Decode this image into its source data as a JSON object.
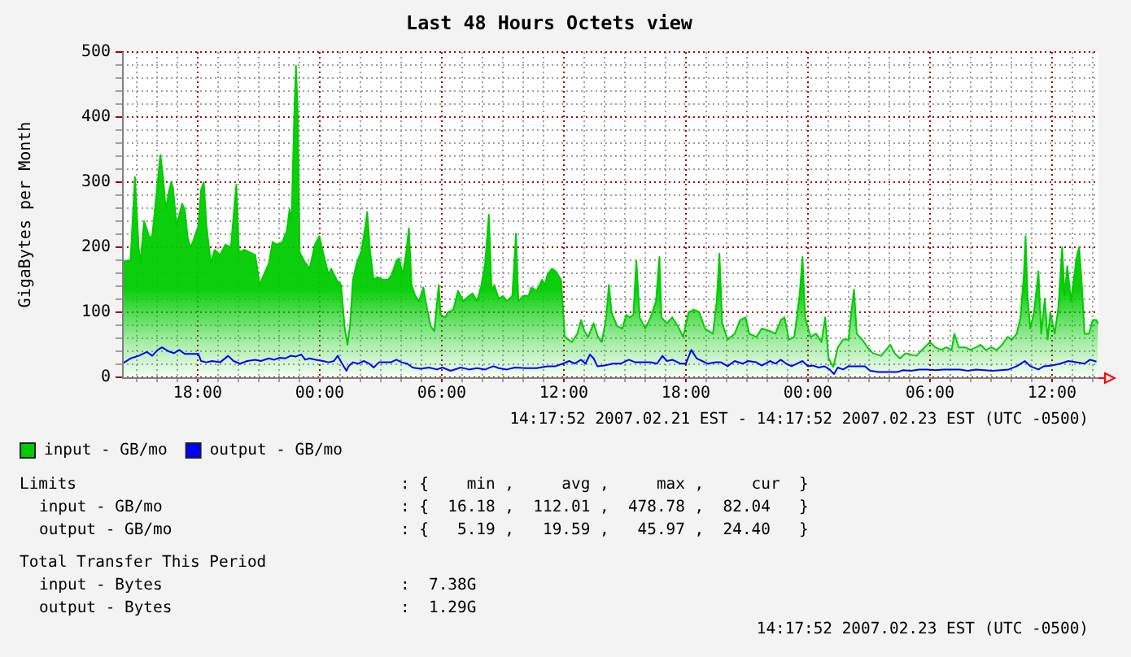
{
  "chart_data": {
    "type": "area",
    "title": "Last 48 Hours Octets view",
    "ylabel": "GigaBytes per Month",
    "xlim": [
      "2007-02-21T14:17",
      "2007-02-23T14:17"
    ],
    "xticks": [
      {
        "value": "2007-02-21T15:00",
        "label": null
      },
      {
        "value": "2007-02-21T16:00",
        "label": null
      },
      {
        "value": "2007-02-21T17:00",
        "label": null
      },
      {
        "value": "2007-02-21T18:00",
        "label": "18:00"
      },
      {
        "value": "2007-02-21T19:00",
        "label": null
      },
      {
        "value": "2007-02-21T20:00",
        "label": null
      },
      {
        "value": "2007-02-21T21:00",
        "label": null
      },
      {
        "value": "2007-02-21T22:00",
        "label": null
      },
      {
        "value": "2007-02-21T23:00",
        "label": null
      },
      {
        "value": "2007-02-22T00:00",
        "label": "00:00"
      },
      {
        "value": "2007-02-22T01:00",
        "label": null
      },
      {
        "value": "2007-02-22T02:00",
        "label": null
      },
      {
        "value": "2007-02-22T03:00",
        "label": null
      },
      {
        "value": "2007-02-22T04:00",
        "label": null
      },
      {
        "value": "2007-02-22T05:00",
        "label": null
      },
      {
        "value": "2007-02-22T06:00",
        "label": "06:00"
      },
      {
        "value": "2007-02-22T07:00",
        "label": null
      },
      {
        "value": "2007-02-22T08:00",
        "label": null
      },
      {
        "value": "2007-02-22T09:00",
        "label": null
      },
      {
        "value": "2007-02-22T10:00",
        "label": null
      },
      {
        "value": "2007-02-22T11:00",
        "label": null
      },
      {
        "value": "2007-02-22T12:00",
        "label": "12:00"
      },
      {
        "value": "2007-02-22T13:00",
        "label": null
      },
      {
        "value": "2007-02-22T14:00",
        "label": null
      },
      {
        "value": "2007-02-22T15:00",
        "label": null
      },
      {
        "value": "2007-02-22T16:00",
        "label": null
      },
      {
        "value": "2007-02-22T17:00",
        "label": null
      },
      {
        "value": "2007-02-22T18:00",
        "label": "18:00"
      },
      {
        "value": "2007-02-22T19:00",
        "label": null
      },
      {
        "value": "2007-02-22T20:00",
        "label": null
      },
      {
        "value": "2007-02-22T21:00",
        "label": null
      },
      {
        "value": "2007-02-22T22:00",
        "label": null
      },
      {
        "value": "2007-02-22T23:00",
        "label": null
      },
      {
        "value": "2007-02-23T00:00",
        "label": "00:00"
      },
      {
        "value": "2007-02-23T01:00",
        "label": null
      },
      {
        "value": "2007-02-23T02:00",
        "label": null
      },
      {
        "value": "2007-02-23T03:00",
        "label": null
      },
      {
        "value": "2007-02-23T04:00",
        "label": null
      },
      {
        "value": "2007-02-23T05:00",
        "label": null
      },
      {
        "value": "2007-02-23T06:00",
        "label": "06:00"
      },
      {
        "value": "2007-02-23T07:00",
        "label": null
      },
      {
        "value": "2007-02-23T08:00",
        "label": null
      },
      {
        "value": "2007-02-23T09:00",
        "label": null
      },
      {
        "value": "2007-02-23T10:00",
        "label": null
      },
      {
        "value": "2007-02-23T11:00",
        "label": null
      },
      {
        "value": "2007-02-23T12:00",
        "label": "12:00"
      },
      {
        "value": "2007-02-23T13:00",
        "label": null
      },
      {
        "value": "2007-02-23T14:00",
        "label": null
      }
    ],
    "ylim": [
      0,
      500
    ],
    "yticks": [
      0,
      {
        "value": 20,
        "label": null
      },
      {
        "value": 40,
        "label": null
      },
      {
        "value": 60,
        "label": null
      },
      {
        "value": 80,
        "label": null
      },
      100,
      {
        "value": 120,
        "label": null
      },
      {
        "value": 140,
        "label": null
      },
      {
        "value": 160,
        "label": null
      },
      {
        "value": 180,
        "label": null
      },
      200,
      {
        "value": 220,
        "label": null
      },
      {
        "value": 240,
        "label": null
      },
      {
        "value": 260,
        "label": null
      },
      {
        "value": 280,
        "label": null
      },
      300,
      {
        "value": 320,
        "label": null
      },
      {
        "value": 340,
        "label": null
      },
      {
        "value": 360,
        "label": null
      },
      {
        "value": 380,
        "label": null
      },
      400,
      {
        "value": 420,
        "label": null
      },
      {
        "value": 440,
        "label": null
      },
      {
        "value": 460,
        "label": null
      },
      {
        "value": 480,
        "label": null
      },
      500
    ],
    "grid": true,
    "legend": "bottom left",
    "marker": "none",
    "annotations": [
      "14:17:52 2007.02.21 EST - 14:17:52 2007.02.23 EST (UTC -0500)",
      "Limits",
      ": {    min ,     avg ,     max ,     cur  }",
      "input - GB/mo",
      ": {  16.18 ,  112.01 ,  478.78 ,  82.04   }",
      "output - GB/mo",
      ": {   5.19 ,   19.59 ,   45.97 ,  24.40   }",
      "Total Transfer This Period",
      "input - Bytes",
      ":  7.38G",
      "output - Bytes",
      ":  1.29G",
      "14:17:52 2007.02.23 EST (UTC -0500)"
    ],
    "series": [
      {
        "name": "input - GB/mo",
        "color": "#00cc00",
        "x": [
          "2007-02-21T14:18",
          "2007-02-21T14:42",
          "2007-02-21T14:55",
          "2007-02-21T15:06",
          "2007-02-21T15:11",
          "2007-02-21T15:22",
          "2007-02-21T15:38",
          "2007-02-21T15:46",
          "2007-02-21T16:02",
          "2007-02-21T16:10",
          "2007-02-21T16:18",
          "2007-02-21T16:26",
          "2007-02-21T16:34",
          "2007-02-21T16:42",
          "2007-02-21T16:47",
          "2007-02-21T16:58",
          "2007-02-21T17:14",
          "2007-02-21T17:22",
          "2007-02-21T17:30",
          "2007-02-21T17:38",
          "2007-02-21T17:46",
          "2007-02-21T18:02",
          "2007-02-21T18:10",
          "2007-02-21T18:18",
          "2007-02-21T18:26",
          "2007-02-21T18:39",
          "2007-02-21T18:50",
          "2007-02-21T19:06",
          "2007-02-21T19:22",
          "2007-02-21T19:38",
          "2007-02-21T19:54",
          "2007-02-21T20:02",
          "2007-02-21T20:18",
          "2007-02-21T20:34",
          "2007-02-21T20:50",
          "2007-02-21T21:03",
          "2007-02-21T21:09",
          "2007-02-21T21:30",
          "2007-02-21T21:41",
          "2007-02-21T21:54",
          "2007-02-21T22:10",
          "2007-02-21T22:23",
          "2007-02-21T22:31",
          "2007-02-21T22:37",
          "2007-02-21T22:45",
          "2007-02-21T22:50",
          "2007-02-21T22:55",
          "2007-02-21T23:01",
          "2007-02-21T23:14",
          "2007-02-21T23:30",
          "2007-02-21T23:46",
          "2007-02-21T23:59",
          "2007-02-22T00:10",
          "2007-02-22T00:26",
          "2007-02-22T00:34",
          "2007-02-22T00:50",
          "2007-02-22T01:03",
          "2007-02-22T01:14",
          "2007-02-22T01:22",
          "2007-02-22T01:30",
          "2007-02-22T01:38",
          "2007-02-22T01:51",
          "2007-02-22T02:02",
          "2007-02-22T02:15",
          "2007-02-22T02:20",
          "2007-02-22T02:29",
          "2007-02-22T02:39",
          "2007-02-22T02:50",
          "2007-02-22T03:06",
          "2007-02-22T03:22",
          "2007-02-22T03:33",
          "2007-02-22T03:46",
          "2007-02-22T03:54",
          "2007-02-22T04:05",
          "2007-02-22T04:15",
          "2007-02-22T04:23",
          "2007-02-22T04:31",
          "2007-02-22T04:42",
          "2007-02-22T04:53",
          "2007-02-22T05:06",
          "2007-02-22T05:14",
          "2007-02-22T05:27",
          "2007-02-22T05:38",
          "2007-02-22T05:51",
          "2007-02-22T05:57",
          "2007-02-22T06:10",
          "2007-02-22T06:18",
          "2007-02-22T06:34",
          "2007-02-22T06:48",
          "2007-02-22T07:04",
          "2007-02-22T07:20",
          "2007-02-22T07:31",
          "2007-02-22T07:44",
          "2007-02-22T07:57",
          "2007-02-22T08:08",
          "2007-02-22T08:19",
          "2007-02-22T08:27",
          "2007-02-22T08:35",
          "2007-02-22T08:48",
          "2007-02-22T09:01",
          "2007-02-22T09:12",
          "2007-02-22T09:28",
          "2007-02-22T09:39",
          "2007-02-22T09:46",
          "2007-02-22T10:00",
          "2007-02-22T10:16",
          "2007-02-22T10:24",
          "2007-02-22T10:40",
          "2007-02-22T10:56",
          "2007-02-22T11:04",
          "2007-02-22T11:12",
          "2007-02-22T11:25",
          "2007-02-22T11:36",
          "2007-02-22T11:52",
          "2007-02-22T12:03",
          "2007-02-22T12:24",
          "2007-02-22T12:40",
          "2007-02-22T12:51",
          "2007-02-22T13:01",
          "2007-02-22T13:12",
          "2007-02-22T13:28",
          "2007-02-22T13:41",
          "2007-02-22T13:52",
          "2007-02-22T14:05",
          "2007-02-22T14:13",
          "2007-02-22T14:21",
          "2007-02-22T14:37",
          "2007-02-22T14:53",
          "2007-02-22T15:04",
          "2007-02-22T15:15",
          "2007-02-22T15:25",
          "2007-02-22T15:34",
          "2007-02-22T15:44",
          "2007-02-22T16:00",
          "2007-02-22T16:16",
          "2007-02-22T16:32",
          "2007-02-22T16:42",
          "2007-02-22T16:48",
          "2007-02-22T17:04",
          "2007-02-22T17:20",
          "2007-02-22T17:36",
          "2007-02-22T17:52",
          "2007-02-22T18:08",
          "2007-02-22T18:24",
          "2007-02-22T18:40",
          "2007-02-22T18:56",
          "2007-02-22T19:20",
          "2007-02-22T19:31",
          "2007-02-22T19:39",
          "2007-02-22T19:47",
          "2007-02-22T20:03",
          "2007-02-22T20:24",
          "2007-02-22T20:40",
          "2007-02-22T20:56",
          "2007-02-22T21:07",
          "2007-02-22T21:28",
          "2007-02-22T21:44",
          "2007-02-22T22:08",
          "2007-02-22T22:24",
          "2007-02-22T22:40",
          "2007-02-22T22:51",
          "2007-02-22T23:04",
          "2007-02-22T23:20",
          "2007-02-22T23:36",
          "2007-02-22T23:44",
          "2007-02-22T23:52",
          "2007-02-23T00:08",
          "2007-02-23T00:24",
          "2007-02-23T00:40",
          "2007-02-23T00:51",
          "2007-02-23T01:01",
          "2007-02-23T01:15",
          "2007-02-23T01:28",
          "2007-02-23T01:44",
          "2007-02-23T02:00",
          "2007-02-23T02:08",
          "2007-02-23T02:16",
          "2007-02-23T02:24",
          "2007-02-23T02:40",
          "2007-02-23T02:56",
          "2007-02-23T03:12",
          "2007-02-23T03:36",
          "2007-02-23T04:03",
          "2007-02-23T04:16",
          "2007-02-23T04:32",
          "2007-02-23T04:48",
          "2007-02-23T05:20",
          "2007-02-23T05:36",
          "2007-02-23T06:00",
          "2007-02-23T06:16",
          "2007-02-23T06:32",
          "2007-02-23T06:48",
          "2007-02-23T07:04",
          "2007-02-23T07:12",
          "2007-02-23T07:25",
          "2007-02-23T07:44",
          "2007-02-23T08:00",
          "2007-02-23T08:16",
          "2007-02-23T08:29",
          "2007-02-23T08:45",
          "2007-02-23T09:01",
          "2007-02-23T09:17",
          "2007-02-23T09:33",
          "2007-02-23T09:49",
          "2007-02-23T10:02",
          "2007-02-23T10:16",
          "2007-02-23T10:27",
          "2007-02-23T10:37",
          "2007-02-23T10:42",
          "2007-02-23T10:48",
          "2007-02-23T10:56",
          "2007-02-23T11:07",
          "2007-02-23T11:20",
          "2007-02-23T11:28",
          "2007-02-23T11:39",
          "2007-02-23T11:47",
          "2007-02-23T11:55",
          "2007-02-23T12:08",
          "2007-02-23T12:19",
          "2007-02-23T12:30",
          "2007-02-23T12:37",
          "2007-02-23T12:45",
          "2007-02-23T12:56",
          "2007-02-23T13:04",
          "2007-02-23T13:12",
          "2007-02-23T13:20",
          "2007-02-23T13:28",
          "2007-02-23T13:36",
          "2007-02-23T13:49",
          "2007-02-23T14:00",
          "2007-02-23T14:11",
          "2007-02-23T14:16"
        ],
        "values": [
          178,
          180,
          308,
          200,
          175,
          240,
          215,
          217,
          300,
          342,
          308,
          258,
          283,
          300,
          292,
          233,
          267,
          258,
          217,
          200,
          208,
          233,
          288,
          300,
          233,
          175,
          196,
          188,
          204,
          200,
          296,
          192,
          196,
          192,
          188,
          142,
          150,
          175,
          208,
          204,
          208,
          225,
          258,
          242,
          404,
          479,
          408,
          192,
          179,
          167,
          204,
          217,
          192,
          158,
          167,
          150,
          142,
          75,
          50,
          83,
          150,
          179,
          192,
          233,
          254,
          192,
          150,
          154,
          150,
          150,
          158,
          179,
          183,
          158,
          192,
          229,
          142,
          125,
          117,
          138,
          113,
          79,
          71,
          142,
          96,
          92,
          100,
          104,
          133,
          117,
          125,
          129,
          117,
          142,
          175,
          250,
          133,
          142,
          121,
          125,
          117,
          125,
          221,
          117,
          125,
          125,
          138,
          133,
          150,
          142,
          158,
          167,
          163,
          150,
          62,
          54,
          67,
          88,
          71,
          62,
          83,
          62,
          54,
          92,
          142,
          100,
          79,
          75,
          96,
          92,
          96,
          179,
          92,
          75,
          92,
          117,
          185,
          92,
          83,
          92,
          79,
          62,
          100,
          104,
          100,
          75,
          67,
          117,
          190,
          83,
          58,
          67,
          88,
          92,
          67,
          62,
          75,
          71,
          67,
          88,
          92,
          58,
          62,
          129,
          185,
          92,
          62,
          67,
          54,
          92,
          29,
          16,
          46,
          58,
          58,
          100,
          135,
          67,
          58,
          46,
          37,
          33,
          50,
          37,
          29,
          37,
          33,
          42,
          54,
          46,
          42,
          46,
          42,
          67,
          46,
          46,
          42,
          46,
          50,
          42,
          46,
          42,
          50,
          62,
          58,
          67,
          92,
          158,
          217,
          125,
          75,
          100,
          163,
          67,
          121,
          58,
          100,
          67,
          108,
          200,
          125,
          171,
          117,
          150,
          183,
          200,
          142,
          67,
          67,
          88,
          88,
          82
        ]
      },
      {
        "name": "output - GB/mo",
        "type": "line",
        "color": "#0000ff",
        "x": [
          "2007-02-21T14:18",
          "2007-02-21T14:42",
          "2007-02-21T15:06",
          "2007-02-21T15:30",
          "2007-02-21T15:46",
          "2007-02-21T16:02",
          "2007-02-21T16:15",
          "2007-02-21T16:34",
          "2007-02-21T16:50",
          "2007-02-21T17:06",
          "2007-02-21T17:22",
          "2007-02-21T18:02",
          "2007-02-21T18:10",
          "2007-02-21T18:26",
          "2007-02-21T18:42",
          "2007-02-21T19:06",
          "2007-02-21T19:30",
          "2007-02-21T19:46",
          "2007-02-21T20:05",
          "2007-02-21T20:26",
          "2007-02-21T20:50",
          "2007-02-21T21:06",
          "2007-02-21T21:30",
          "2007-02-21T21:46",
          "2007-02-21T22:02",
          "2007-02-21T22:18",
          "2007-02-21T22:34",
          "2007-02-21T22:50",
          "2007-02-21T23:06",
          "2007-02-21T23:17",
          "2007-02-21T23:30",
          "2007-02-21T23:49",
          "2007-02-22T00:10",
          "2007-02-22T00:26",
          "2007-02-22T00:42",
          "2007-02-22T00:53",
          "2007-02-22T01:06",
          "2007-02-22T01:19",
          "2007-02-22T01:25",
          "2007-02-22T01:38",
          "2007-02-22T01:54",
          "2007-02-22T02:10",
          "2007-02-22T02:26",
          "2007-02-22T02:39",
          "2007-02-22T02:55",
          "2007-02-22T03:14",
          "2007-02-22T03:30",
          "2007-02-22T03:46",
          "2007-02-22T04:02",
          "2007-02-22T04:18",
          "2007-02-22T04:34",
          "2007-02-22T04:58",
          "2007-02-22T05:22",
          "2007-02-22T05:46",
          "2007-02-22T06:02",
          "2007-02-22T06:26",
          "2007-02-22T06:56",
          "2007-02-22T07:20",
          "2007-02-22T07:44",
          "2007-02-22T08:08",
          "2007-02-22T08:32",
          "2007-02-22T08:48",
          "2007-02-22T09:12",
          "2007-02-22T09:36",
          "2007-02-22T10:08",
          "2007-02-22T10:40",
          "2007-02-22T11:12",
          "2007-02-22T11:36",
          "2007-02-22T11:57",
          "2007-02-22T12:16",
          "2007-02-22T12:32",
          "2007-02-22T12:51",
          "2007-02-22T13:04",
          "2007-02-22T13:17",
          "2007-02-22T13:28",
          "2007-02-22T13:39",
          "2007-02-22T14:00",
          "2007-02-22T14:24",
          "2007-02-22T14:48",
          "2007-02-22T15:12",
          "2007-02-22T15:31",
          "2007-02-22T15:52",
          "2007-02-22T16:16",
          "2007-02-22T16:35",
          "2007-02-22T16:51",
          "2007-02-22T17:04",
          "2007-02-22T17:20",
          "2007-02-22T17:44",
          "2007-02-22T18:00",
          "2007-02-22T18:16",
          "2007-02-22T18:32",
          "2007-02-22T18:48",
          "2007-02-22T19:04",
          "2007-02-22T19:28",
          "2007-02-22T19:44",
          "2007-02-22T20:03",
          "2007-02-22T20:24",
          "2007-02-22T20:48",
          "2007-02-22T21:04",
          "2007-02-22T21:28",
          "2007-02-22T21:44",
          "2007-02-22T22:08",
          "2007-02-22T22:24",
          "2007-02-22T22:40",
          "2007-02-22T22:56",
          "2007-02-22T23:12",
          "2007-02-22T23:28",
          "2007-02-22T23:44",
          "2007-02-23T00:00",
          "2007-02-23T00:16",
          "2007-02-23T00:32",
          "2007-02-23T00:48",
          "2007-02-23T01:04",
          "2007-02-23T01:17",
          "2007-02-23T01:28",
          "2007-02-23T01:44",
          "2007-02-23T02:00",
          "2007-02-23T02:32",
          "2007-02-23T02:48",
          "2007-02-23T03:04",
          "2007-02-23T03:28",
          "2007-02-23T04:00",
          "2007-02-23T04:24",
          "2007-02-23T04:40",
          "2007-02-23T05:04",
          "2007-02-23T05:28",
          "2007-02-23T05:52",
          "2007-02-23T06:16",
          "2007-02-23T06:40",
          "2007-02-23T07:04",
          "2007-02-23T07:28",
          "2007-02-23T07:52",
          "2007-02-23T08:16",
          "2007-02-23T08:40",
          "2007-02-23T09:04",
          "2007-02-23T09:28",
          "2007-02-23T09:52",
          "2007-02-23T10:16",
          "2007-02-23T10:40",
          "2007-02-23T10:56",
          "2007-02-23T11:20",
          "2007-02-23T11:36",
          "2007-02-23T12:00",
          "2007-02-23T12:24",
          "2007-02-23T12:48",
          "2007-02-23T13:12",
          "2007-02-23T13:36",
          "2007-02-23T13:52",
          "2007-02-23T14:11"
        ],
        "values": [
          21,
          29,
          33,
          39,
          33,
          42,
          46,
          40,
          37,
          42,
          36,
          36,
          25,
          23,
          25,
          23,
          33,
          25,
          21,
          25,
          27,
          25,
          29,
          27,
          30,
          29,
          33,
          32,
          35,
          27,
          29,
          27,
          25,
          23,
          25,
          33,
          21,
          10,
          17,
          23,
          21,
          25,
          21,
          15,
          23,
          23,
          23,
          27,
          23,
          21,
          15,
          13,
          15,
          12,
          15,
          10,
          15,
          12,
          14,
          12,
          17,
          14,
          12,
          15,
          14,
          14,
          17,
          17,
          21,
          25,
          21,
          27,
          21,
          35,
          29,
          17,
          18,
          21,
          21,
          27,
          23,
          23,
          23,
          21,
          33,
          25,
          27,
          21,
          21,
          42,
          29,
          25,
          21,
          23,
          23,
          17,
          25,
          21,
          25,
          23,
          18,
          25,
          21,
          27,
          21,
          17,
          21,
          25,
          17,
          18,
          15,
          17,
          12,
          5,
          15,
          12,
          17,
          17,
          17,
          10,
          8,
          8,
          8,
          11,
          10,
          12,
          12,
          11,
          12,
          12,
          12,
          10,
          12,
          11,
          10,
          11,
          12,
          17,
          25,
          17,
          12,
          17,
          18,
          21,
          25,
          23,
          21,
          27,
          24
        ]
      }
    ]
  }
}
